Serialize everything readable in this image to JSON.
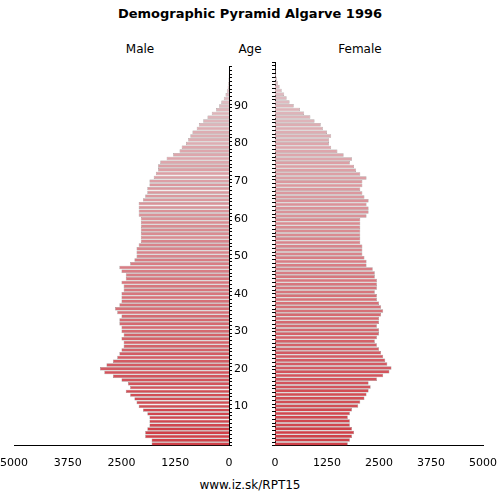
{
  "chart_data": {
    "type": "bar",
    "orientation": "horizontal",
    "title": "Demographic Pyramid Algarve 1996",
    "ylabel": "Age",
    "categories": [
      null,
      null,
      null,
      null,
      null,
      null,
      null,
      null,
      null,
      null,
      10,
      null,
      null,
      null,
      null,
      null,
      null,
      null,
      null,
      null,
      20,
      null,
      null,
      null,
      null,
      null,
      null,
      null,
      null,
      null,
      30,
      null,
      null,
      null,
      null,
      null,
      null,
      null,
      null,
      null,
      40,
      null,
      null,
      null,
      null,
      null,
      null,
      null,
      null,
      null,
      50,
      null,
      null,
      null,
      null,
      null,
      null,
      null,
      null,
      null,
      60,
      null,
      null,
      null,
      null,
      null,
      null,
      null,
      null,
      null,
      70,
      null,
      null,
      null,
      null,
      null,
      null,
      null,
      null,
      null,
      80,
      null,
      null,
      null,
      null,
      null,
      null,
      null,
      null,
      null,
      90,
      null,
      null,
      null,
      null,
      null,
      null,
      null,
      null,
      null,
      null
    ],
    "series": [
      {
        "name": "Male",
        "values": [
          1800,
          1800,
          1950,
          1950,
          1900,
          1850,
          1850,
          1850,
          1900,
          2000,
          2100,
          2150,
          2200,
          2300,
          2400,
          2300,
          2350,
          2500,
          2700,
          2900,
          3000,
          2850,
          2700,
          2600,
          2550,
          2500,
          2450,
          2450,
          2500,
          2450,
          2500,
          2500,
          2550,
          2550,
          2500,
          2600,
          2650,
          2550,
          2500,
          2500,
          2500,
          2450,
          2450,
          2500,
          2400,
          2400,
          2500,
          2550,
          2300,
          2200,
          2150,
          2150,
          2150,
          2100,
          2050,
          2050,
          2050,
          2050,
          2050,
          2050,
          2050,
          2100,
          2100,
          2100,
          2100,
          2000,
          1950,
          1900,
          1900,
          1850,
          1850,
          1750,
          1700,
          1650,
          1650,
          1600,
          1450,
          1300,
          1150,
          1100,
          1000,
          950,
          900,
          850,
          750,
          700,
          600,
          500,
          400,
          300,
          230,
          180,
          120,
          80,
          50,
          30,
          20,
          12,
          8,
          5,
          3
        ]
      },
      {
        "name": "Female",
        "values": [
          1750,
          1800,
          1850,
          1900,
          1850,
          1800,
          1800,
          1750,
          1800,
          1850,
          2000,
          2050,
          2150,
          2200,
          2250,
          2300,
          2250,
          2450,
          2600,
          2750,
          2800,
          2700,
          2650,
          2600,
          2550,
          2500,
          2450,
          2400,
          2450,
          2500,
          2500,
          2450,
          2500,
          2500,
          2550,
          2600,
          2550,
          2500,
          2450,
          2450,
          2400,
          2450,
          2450,
          2450,
          2400,
          2400,
          2350,
          2200,
          2200,
          2150,
          2100,
          2100,
          2100,
          2050,
          2050,
          2050,
          2050,
          2050,
          2050,
          2050,
          2200,
          2250,
          2250,
          2200,
          2250,
          2150,
          2100,
          2050,
          2100,
          2100,
          2200,
          2050,
          1950,
          1900,
          1800,
          1850,
          1650,
          1500,
          1350,
          1300,
          1300,
          1350,
          1250,
          1150,
          1100,
          950,
          850,
          700,
          600,
          450,
          350,
          280,
          220,
          160,
          110,
          70,
          45,
          30,
          20,
          12,
          8
        ]
      }
    ],
    "colors": [
      "#d04048",
      "#d04048",
      "#d04048",
      "#d04048",
      "#d04048",
      "#d1474f",
      "#d1474f",
      "#d1474f",
      "#d1474f",
      "#d1474f",
      "#d24e55",
      "#d24e55",
      "#d24e55",
      "#d24e55",
      "#d24e55",
      "#d3545c",
      "#d3545c",
      "#d3545c",
      "#d3545c",
      "#d3545c",
      "#d35b63",
      "#d35b63",
      "#d35b63",
      "#d35b63",
      "#d35b63",
      "#d46269",
      "#d46269",
      "#d46269",
      "#d46269",
      "#d46269",
      "#d56970",
      "#d56970",
      "#d56970",
      "#d56970",
      "#d56970",
      "#d67077",
      "#d67077",
      "#d67077",
      "#d67077",
      "#d67077",
      "#d7767d",
      "#d7767d",
      "#d7767d",
      "#d7767d",
      "#d7767d",
      "#d87d84",
      "#d87d84",
      "#d87d84",
      "#d87d84",
      "#d87d84",
      "#d8848b",
      "#d8848b",
      "#d8848b",
      "#d8848b",
      "#d8848b",
      "#d98b91",
      "#d98b91",
      "#d98b91",
      "#d98b91",
      "#d98b91",
      "#da9298",
      "#da9298",
      "#da9298",
      "#da9298",
      "#da9298",
      "#db989e",
      "#db989e",
      "#db989e",
      "#db989e",
      "#db989e",
      "#dc9fa5",
      "#dc9fa5",
      "#dc9fa5",
      "#dc9fa5",
      "#dc9fa5",
      "#dda6ac",
      "#dda6ac",
      "#dda6ac",
      "#dda6ac",
      "#dda6ac",
      "#ddadb2",
      "#ddadb2",
      "#ddadb2",
      "#ddadb2",
      "#ddadb2",
      "#deb4b9",
      "#deb4b9",
      "#deb4b9",
      "#deb4b9",
      "#deb4b9",
      "#dfbac0",
      "#dfbac0",
      "#dfbac0",
      "#dfbac0",
      "#dfbac0",
      "#e0c1c6",
      "#e0c1c6",
      "#e0c1c6",
      "#e0c1c6",
      "#e0c1c6",
      "#e1c8cd"
    ],
    "xlim": [
      0,
      5000
    ],
    "xticks": [
      0,
      1250,
      2500,
      3750,
      5000
    ],
    "grid": false,
    "annotations": [
      "www.iz.sk/RPT15"
    ]
  }
}
